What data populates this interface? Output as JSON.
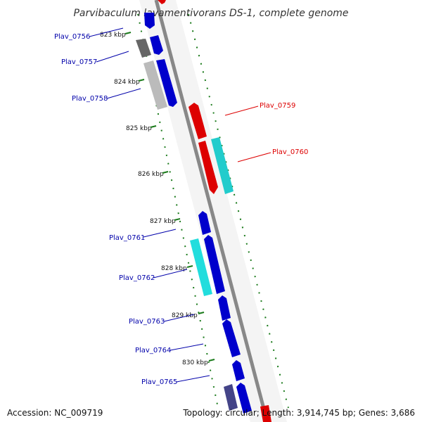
{
  "title": "Parvibaculum lavamentivorans DS-1, complete genome",
  "accession_label": "Accession: NC_009719",
  "topology_label": "Topology: circular; Length: 3,914,745 bp; Genes: 3,686",
  "kbp_ticks": [
    "823 kbp",
    "824 kbp",
    "825 kbp",
    "826 kbp",
    "827 kbp",
    "828 kbp",
    "829 kbp",
    "830 kbp"
  ],
  "genes": [
    {
      "name": "Plav_0756",
      "strand": "reverse",
      "color": "#0000cc"
    },
    {
      "name": "Plav_0757",
      "strand": "reverse",
      "color": "#0000cc"
    },
    {
      "name": "Plav_0758",
      "strand": "reverse",
      "color": "#0000cc"
    },
    {
      "name": "Plav_0759",
      "strand": "forward",
      "color": "#dd0000"
    },
    {
      "name": "Plav_0760",
      "strand": "forward",
      "color": "#dd0000"
    },
    {
      "name": "Plav_0761",
      "strand": "reverse",
      "color": "#0000cc"
    },
    {
      "name": "Plav_0762",
      "strand": "reverse",
      "color": "#0000cc"
    },
    {
      "name": "Plav_0763",
      "strand": "reverse",
      "color": "#0000cc"
    },
    {
      "name": "Plav_0764",
      "strand": "reverse",
      "color": "#0000cc"
    },
    {
      "name": "Plav_0765",
      "strand": "reverse",
      "color": "#0000cc"
    }
  ],
  "colors": {
    "backbone": "#888888",
    "tick_green": "#1a7a1a",
    "forward_label": "#dd0000",
    "reverse_label": "#0000aa",
    "cyan_feature": "#22cccc",
    "gray_feature": "#aaaaaa"
  }
}
